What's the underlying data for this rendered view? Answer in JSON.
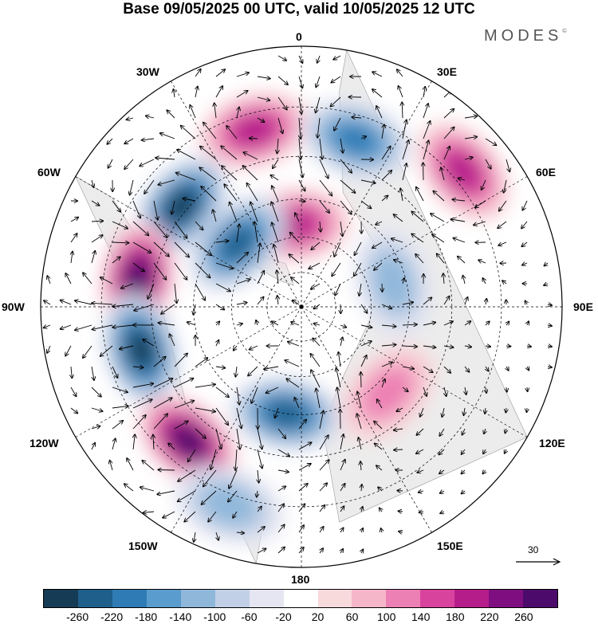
{
  "title": "Base 09/05/2025 00 UTC, valid 10/05/2025 12 UTC",
  "brand": "MODES",
  "brand_mark": "©",
  "longitude_labels": {
    "top": "0",
    "bottom": "180",
    "left": "90W",
    "right": "90E",
    "l30w": "30W",
    "l60w": "60W",
    "l120w": "120W",
    "l150w": "150W",
    "l30e": "30E",
    "l60e": "60E",
    "l120e": "120E",
    "l150e": "150E"
  },
  "reference_vector": {
    "label": "30"
  },
  "colorbar": {
    "ticks": [
      "-260",
      "-220",
      "-180",
      "-140",
      "-100",
      "-60",
      "-20",
      "20",
      "60",
      "100",
      "140",
      "180",
      "220",
      "260"
    ],
    "colors": [
      "#163b55",
      "#1f5f8c",
      "#2f7bb5",
      "#5a9ccd",
      "#8fb7da",
      "#c1d0e6",
      "#e6e6f2",
      "#ffffff",
      "#f8d9dc",
      "#f6b6c9",
      "#ec7fb3",
      "#d8439e",
      "#b51e8a",
      "#7f0e80",
      "#4c0b6b"
    ]
  },
  "map": {
    "landcolor": "#ececec",
    "features": [
      {
        "name": "positive-anomaly-atlantic",
        "sign": 1,
        "lat": 20,
        "lon": -15,
        "strength": 200
      },
      {
        "name": "negative-anomaly-north-atlantic",
        "sign": -1,
        "lat": 22,
        "lon": 18,
        "strength": 190
      },
      {
        "name": "positive-anomaly-eurasia",
        "sign": 1,
        "lat": 12,
        "lon": 50,
        "strength": 180
      },
      {
        "name": "positive-anomaly-pole-atlantic",
        "sign": 1,
        "lat": 55,
        "lon": -5,
        "strength": 200
      },
      {
        "name": "negative-anomaly-labrador",
        "sign": -1,
        "lat": 28,
        "lon": -50,
        "strength": 260
      },
      {
        "name": "negative-anomaly-greenland",
        "sign": -1,
        "lat": 52,
        "lon": -45,
        "strength": 230
      },
      {
        "name": "positive-anomaly-canada",
        "sign": 1,
        "lat": 25,
        "lon": -80,
        "strength": 270
      },
      {
        "name": "negative-anomaly-pacific-ne",
        "sign": -1,
        "lat": 25,
        "lon": -105,
        "strength": 270
      },
      {
        "name": "positive-anomaly-pacific",
        "sign": 1,
        "lat": 22,
        "lon": -140,
        "strength": 270
      },
      {
        "name": "negative-anomaly-bering",
        "sign": -1,
        "lat": 45,
        "lon": -172,
        "strength": 250
      },
      {
        "name": "negative-anomaly-siberia",
        "sign": -1,
        "lat": 50,
        "lon": 75,
        "strength": 130
      },
      {
        "name": "positive-anomaly-east-asia",
        "sign": 1,
        "lat": 40,
        "lon": 135,
        "strength": 120
      },
      {
        "name": "negative-anomaly-pacific-sw",
        "sign": -1,
        "lat": 12,
        "lon": -160,
        "strength": 130
      }
    ]
  }
}
